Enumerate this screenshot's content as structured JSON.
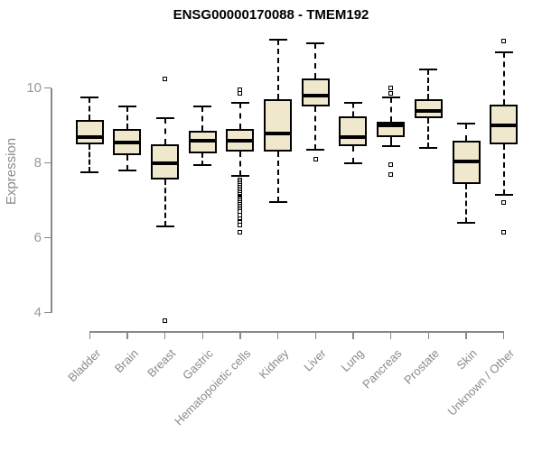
{
  "colors": {
    "box_fill": "#EFE8CC",
    "box_stroke": "#000000",
    "axis_line": "#888888",
    "tick_label": "#999999",
    "axis_title": "#8A8A8A",
    "title": "#000000",
    "background": "#FFFFFF"
  },
  "chart_data": {
    "type": "boxplot",
    "title": "ENSG00000170088 - TMEM192",
    "xlabel": "",
    "ylabel": "Expression",
    "yticks": [
      4,
      6,
      8,
      10
    ],
    "yaxis_drawn_range": [
      4,
      10
    ],
    "grid": false,
    "legend": "none",
    "categories": [
      "Bladder",
      "Brain",
      "Breast",
      "Gastric",
      "Hematopoietic cells",
      "Kidney",
      "Liver",
      "Lung",
      "Pancreas",
      "Prostate",
      "Skin",
      "Unknown / Other"
    ],
    "boxes": [
      {
        "category": "Bladder",
        "whisker_low": 7.75,
        "q1": 8.5,
        "median": 8.7,
        "q3": 9.15,
        "whisker_high": 9.75,
        "outliers": []
      },
      {
        "category": "Brain",
        "whisker_low": 7.8,
        "q1": 8.2,
        "median": 8.55,
        "q3": 8.9,
        "whisker_high": 9.5,
        "outliers": []
      },
      {
        "category": "Breast",
        "whisker_low": 6.3,
        "q1": 7.55,
        "median": 8.0,
        "q3": 8.5,
        "whisker_high": 9.2,
        "outliers": [
          10.25,
          3.8
        ]
      },
      {
        "category": "Gastric",
        "whisker_low": 7.95,
        "q1": 8.25,
        "median": 8.6,
        "q3": 8.85,
        "whisker_high": 9.5,
        "outliers": []
      },
      {
        "category": "Hematopoietic cells",
        "whisker_low": 7.65,
        "q1": 8.3,
        "median": 8.6,
        "q3": 8.9,
        "whisker_high": 9.6,
        "outliers": [
          9.95,
          9.85,
          7.55,
          7.5,
          7.45,
          7.4,
          7.35,
          7.3,
          7.25,
          7.2,
          7.15,
          7.1,
          7.05,
          7.0,
          6.95,
          6.9,
          6.85,
          6.8,
          6.7,
          6.6,
          6.5,
          6.45,
          6.35,
          6.15
        ]
      },
      {
        "category": "Kidney",
        "whisker_low": 6.95,
        "q1": 8.3,
        "median": 8.8,
        "q3": 9.7,
        "whisker_high": 11.3,
        "outliers": []
      },
      {
        "category": "Liver",
        "whisker_low": 8.35,
        "q1": 9.5,
        "median": 9.8,
        "q3": 10.25,
        "whisker_high": 11.2,
        "outliers": [
          8.1
        ]
      },
      {
        "category": "Lung",
        "whisker_low": 8.0,
        "q1": 8.45,
        "median": 8.7,
        "q3": 9.25,
        "whisker_high": 9.6,
        "outliers": []
      },
      {
        "category": "Pancreas",
        "whisker_low": 8.45,
        "q1": 8.7,
        "median": 9.0,
        "q3": 9.1,
        "whisker_high": 9.75,
        "outliers": [
          10.0,
          9.85,
          7.95,
          7.7
        ]
      },
      {
        "category": "Prostate",
        "whisker_low": 8.4,
        "q1": 9.2,
        "median": 9.4,
        "q3": 9.7,
        "whisker_high": 10.5,
        "outliers": []
      },
      {
        "category": "Skin",
        "whisker_low": 6.4,
        "q1": 7.45,
        "median": 8.05,
        "q3": 8.6,
        "whisker_high": 9.05,
        "outliers": []
      },
      {
        "category": "Unknown / Other",
        "whisker_low": 7.15,
        "q1": 8.5,
        "median": 9.0,
        "q3": 9.55,
        "whisker_high": 10.95,
        "outliers": [
          11.25,
          6.95,
          6.15
        ]
      }
    ]
  }
}
